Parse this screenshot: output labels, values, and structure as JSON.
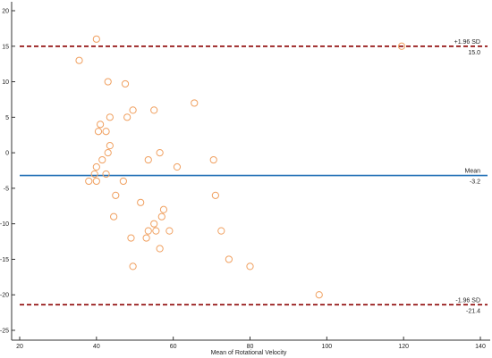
{
  "chart_data": {
    "type": "scatter",
    "title": "",
    "xlabel": "Mean of Rotational Velocity",
    "ylabel": "",
    "xlim": [
      20,
      140
    ],
    "ylim": [
      -25,
      20
    ],
    "x_ticks": [
      20,
      40,
      60,
      80,
      100,
      120,
      140
    ],
    "y_ticks": [
      20,
      15,
      10,
      5,
      0,
      -5,
      -10,
      -15,
      -20,
      -25
    ],
    "grid": false,
    "marker_color": "#f0a060",
    "points": [
      {
        "x": 35.5,
        "y": 13
      },
      {
        "x": 40,
        "y": 16
      },
      {
        "x": 43,
        "y": 10
      },
      {
        "x": 47.5,
        "y": 9.7
      },
      {
        "x": 41,
        "y": 4
      },
      {
        "x": 40.5,
        "y": 3
      },
      {
        "x": 43.5,
        "y": 5
      },
      {
        "x": 42.5,
        "y": 3
      },
      {
        "x": 48,
        "y": 5
      },
      {
        "x": 49.5,
        "y": 6
      },
      {
        "x": 55,
        "y": 6
      },
      {
        "x": 65.5,
        "y": 7
      },
      {
        "x": 43.5,
        "y": 1
      },
      {
        "x": 43,
        "y": 0
      },
      {
        "x": 56.5,
        "y": 0
      },
      {
        "x": 41.5,
        "y": -1
      },
      {
        "x": 53.5,
        "y": -1
      },
      {
        "x": 70.5,
        "y": -1
      },
      {
        "x": 40,
        "y": -2
      },
      {
        "x": 61,
        "y": -2
      },
      {
        "x": 39.5,
        "y": -3
      },
      {
        "x": 42.5,
        "y": -3
      },
      {
        "x": 38,
        "y": -4
      },
      {
        "x": 40,
        "y": -4
      },
      {
        "x": 47,
        "y": -4
      },
      {
        "x": 45,
        "y": -6
      },
      {
        "x": 71,
        "y": -6
      },
      {
        "x": 51.5,
        "y": -7
      },
      {
        "x": 57.5,
        "y": -8
      },
      {
        "x": 44.5,
        "y": -9
      },
      {
        "x": 57,
        "y": -9
      },
      {
        "x": 55,
        "y": -10
      },
      {
        "x": 53.5,
        "y": -11
      },
      {
        "x": 55.5,
        "y": -11
      },
      {
        "x": 59,
        "y": -11
      },
      {
        "x": 72.5,
        "y": -11
      },
      {
        "x": 49,
        "y": -12
      },
      {
        "x": 53,
        "y": -12
      },
      {
        "x": 56.5,
        "y": -13.5
      },
      {
        "x": 74.5,
        "y": -15
      },
      {
        "x": 49.5,
        "y": -16
      },
      {
        "x": 80,
        "y": -16
      },
      {
        "x": 98,
        "y": -20
      },
      {
        "x": 119.5,
        "y": 15
      }
    ],
    "reference_lines": [
      {
        "key": "upper",
        "label": "+1.96 SD",
        "value_label": "15.0",
        "y": 15.0,
        "color": "#8b0000",
        "style": "dashed"
      },
      {
        "key": "mean",
        "label": "Mean",
        "value_label": "-3.2",
        "y": -3.2,
        "color": "#1f6fb5",
        "style": "solid"
      },
      {
        "key": "lower",
        "label": "-1.96 SD",
        "value_label": "-21.4",
        "y": -21.4,
        "color": "#8b0000",
        "style": "dashed"
      }
    ]
  }
}
